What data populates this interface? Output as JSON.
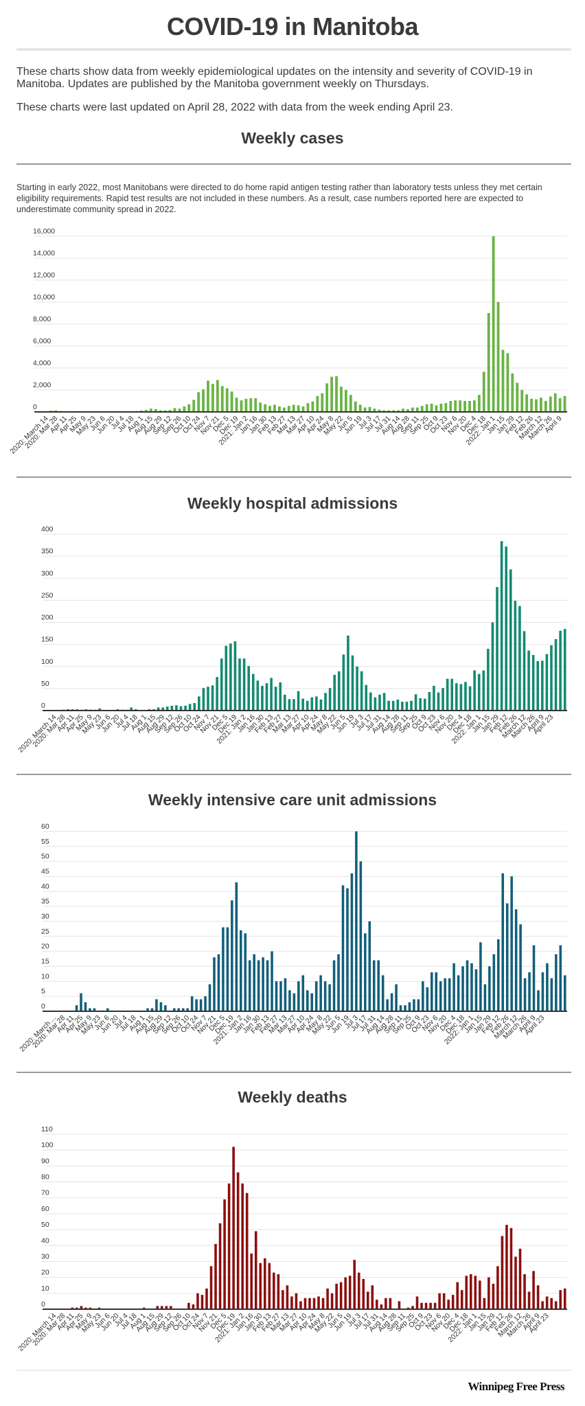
{
  "page": {
    "title": "COVID-19 in Manitoba",
    "intro_1": "These charts show data from weekly epidemiological updates on the intensity and severity of COVID-19 in Manitoba. Updates are published by the Manitoba government weekly on Thursdays.",
    "intro_2": "These charts were last updated on April 28, 2022 with data from the week ending April 23.",
    "cases_note": "Starting in early 2022, most Manitobans were directed to do home rapid antigen testing rather than laboratory tests unless they met certain eligibility requirements. Rapid test results are not included in these numbers. As a result, case numbers reported here are expected to underestimate community spread in 2022.",
    "brand": "Winnipeg Free Press"
  },
  "chart_data": [
    {
      "id": "cases",
      "type": "bar",
      "title": "Weekly cases",
      "color": "#6ab445",
      "xlabel": "",
      "ylabel": "",
      "ylim": [
        0,
        16000
      ],
      "yticks": [
        0,
        2000,
        4000,
        6000,
        8000,
        10000,
        12000,
        14000,
        16000
      ],
      "ytick_labels": [
        "0",
        "2,000",
        "4,000",
        "6,000",
        "8,000",
        "10,000",
        "12,000",
        "14,000",
        "16,000"
      ],
      "grid": true,
      "legend": "none",
      "x_labels": [
        "2020: March 14",
        "2020: Mar 28",
        "Apr 11",
        "Apr 25",
        "May 9",
        "May 23",
        "Jun 6",
        "Jun 20",
        "Jul 4",
        "Jul 18",
        "Aug 1",
        "Aug 15",
        "Aug 29",
        "Sep 12",
        "Sep 26",
        "Oct 10",
        "Oct 24",
        "Nov 7",
        "Nov 21",
        "Dec 5",
        "Dec 19",
        "2021: Jan 2",
        "Jan 16",
        "Jan 30",
        "Feb 13",
        "Feb 27",
        "Mar 13",
        "Mar 27",
        "Apr 10",
        "Apr 24",
        "May 8",
        "May 22",
        "Jun 5",
        "Jun 19",
        "Jul 3",
        "Jul 17",
        "Jul 31",
        "Aug 14",
        "Aug 28",
        "Sep 11",
        "Sep 25",
        "Oct 9",
        "Oct 23",
        "Nov 6",
        "Nov 20",
        "Dec 4",
        "Dec 18",
        "2022: Jan 1",
        "Jan 15",
        "Jan 29",
        "Feb 12",
        "Feb 26",
        "March 12",
        "March 26",
        "April 9"
      ],
      "values": [
        20,
        120,
        140,
        80,
        40,
        15,
        10,
        5,
        5,
        5,
        5,
        5,
        5,
        5,
        10,
        10,
        20,
        30,
        60,
        80,
        120,
        180,
        300,
        250,
        150,
        140,
        180,
        350,
        300,
        500,
        700,
        1100,
        1800,
        2050,
        2850,
        2550,
        2900,
        2350,
        2150,
        1850,
        1300,
        1050,
        1200,
        1250,
        1250,
        850,
        700,
        550,
        650,
        500,
        400,
        550,
        650,
        600,
        500,
        800,
        950,
        1450,
        1700,
        2600,
        3200,
        3250,
        2300,
        2000,
        1550,
        950,
        650,
        400,
        450,
        300,
        200,
        150,
        150,
        150,
        150,
        300,
        250,
        400,
        400,
        550,
        700,
        750,
        600,
        750,
        800,
        1000,
        1050,
        1050,
        1000,
        1000,
        1050,
        1550,
        3650,
        9000,
        16000,
        10000,
        5650,
        5350,
        3500,
        2650,
        2000,
        1600,
        1200,
        1150,
        1300,
        1000,
        1400,
        1700,
        1250,
        1450
      ]
    },
    {
      "id": "hospital",
      "type": "bar",
      "title": "Weekly hospital admissions",
      "color": "#148a72",
      "xlabel": "",
      "ylabel": "",
      "ylim": [
        0,
        400
      ],
      "yticks": [
        0,
        50,
        100,
        150,
        200,
        250,
        300,
        350,
        400
      ],
      "ytick_labels": [
        "0",
        "50",
        "100",
        "150",
        "200",
        "250",
        "300",
        "350",
        "400"
      ],
      "grid": true,
      "legend": "none",
      "x_labels": [
        "2020: March 14",
        "2020: Mar 28",
        "Apr 11",
        "Apr 25",
        "May 9",
        "May 23",
        "Jun 6",
        "Jun 20",
        "Jul 4",
        "Jul 18",
        "Aug 1",
        "Aug 15",
        "Aug 29",
        "Sep 12",
        "Sep 26",
        "Oct 10",
        "Oct 24",
        "Nov 7",
        "Nov 21",
        "Dec 5",
        "Dec 19",
        "2021: Jan 2",
        "Jan 16",
        "Jan 30",
        "Feb 13",
        "Feb 27",
        "Mar 13",
        "Mar 27",
        "Apr 10",
        "Apr 24",
        "May 8",
        "May 22",
        "Jun 5",
        "Jun 19",
        "Jul 3",
        "Jul 17",
        "Jul 31",
        "Aug 14",
        "Aug 28",
        "Sep 11",
        "Sep 25",
        "Oct 9",
        "Oct 23",
        "Nov 6",
        "Nov 20",
        "Dec 4",
        "Dec 18",
        "2022: Jan 1",
        "Jan 15",
        "Jan 29",
        "Feb 12",
        "Feb 26",
        "March 12",
        "March 26",
        "April 9",
        "April 23"
      ],
      "values": [
        0,
        0,
        2,
        3,
        3,
        3,
        2,
        3,
        2,
        2,
        5,
        0,
        1,
        0,
        3,
        2,
        2,
        7,
        3,
        0,
        0,
        3,
        3,
        7,
        7,
        9,
        11,
        12,
        10,
        11,
        15,
        17,
        32,
        51,
        54,
        57,
        76,
        118,
        147,
        152,
        157,
        118,
        118,
        101,
        83,
        68,
        56,
        62,
        74,
        54,
        64,
        36,
        26,
        26,
        44,
        27,
        22,
        30,
        32,
        25,
        40,
        51,
        81,
        89,
        127,
        170,
        125,
        100,
        89,
        58,
        41,
        30,
        36,
        40,
        22,
        22,
        25,
        20,
        20,
        22,
        37,
        28,
        27,
        42,
        56,
        41,
        51,
        72,
        72,
        62,
        60,
        65,
        55,
        91,
        83,
        91,
        140,
        200,
        280,
        384,
        372,
        320,
        249,
        237,
        180,
        136,
        126,
        112,
        113,
        128,
        148,
        162,
        181,
        185
      ]
    },
    {
      "id": "icu",
      "type": "bar",
      "title": "Weekly intensive care unit admissions",
      "color": "#115f7a",
      "xlabel": "",
      "ylabel": "",
      "ylim": [
        0,
        60
      ],
      "yticks": [
        0,
        5,
        10,
        15,
        20,
        25,
        30,
        35,
        40,
        45,
        50,
        55,
        60
      ],
      "ytick_labels": [
        "0",
        "5",
        "10",
        "15",
        "20",
        "25",
        "30",
        "35",
        "40",
        "45",
        "50",
        "55",
        "60"
      ],
      "grid": true,
      "legend": "none",
      "x_labels": [
        "2020: March ...",
        "2020: Mar 28",
        "Apr 11",
        "Apr 25",
        "May 9",
        "May 23",
        "Jun 6",
        "Jun 20",
        "Jul 4",
        "Jul 18",
        "Aug 1",
        "Aug 15",
        "Aug 29",
        "Sep 12",
        "Sep 26",
        "Oct 10",
        "Oct 24",
        "Nov 7",
        "Nov 21",
        "Dec 5",
        "Dec 19",
        "2021: Jan 2",
        "Jan 16",
        "Jan 30",
        "Feb 13",
        "Feb 27",
        "Mar 13",
        "Mar 27",
        "Apr 10",
        "Apr 24",
        "May 8",
        "May 22",
        "Jun 5",
        "Jun 19",
        "Jul 3",
        "Jul 17",
        "Jul 31",
        "Aug 14",
        "Aug 28",
        "Sep 11",
        "Sep 25",
        "Oct 9",
        "Oct 23",
        "Nov 6",
        "Nov 20",
        "Dec 4",
        "Dec 18",
        "2022: Jan 1",
        "Jan 15",
        "Jan 29",
        "Feb 12",
        "Feb 26",
        "March 12",
        "March 26",
        "April 9",
        "April 23"
      ],
      "values": [
        0,
        0,
        0,
        0,
        0,
        2,
        6,
        3,
        1,
        1,
        0,
        0,
        1,
        0,
        0,
        0,
        0,
        0,
        0,
        0,
        0,
        1,
        1,
        4,
        3,
        2,
        0,
        1,
        1,
        1,
        1,
        5,
        4,
        4,
        5,
        9,
        18,
        19,
        28,
        28,
        37,
        43,
        27,
        26,
        17,
        19,
        17,
        18,
        17,
        20,
        10,
        10,
        11,
        7,
        6,
        10,
        12,
        7,
        6,
        10,
        12,
        10,
        9,
        17,
        19,
        42,
        41,
        46,
        60,
        50,
        26,
        30,
        17,
        17,
        12,
        4,
        6,
        9,
        2,
        2,
        3,
        4,
        4,
        10,
        8,
        13,
        13,
        10,
        11,
        11,
        16,
        12,
        15,
        17,
        16,
        14,
        23,
        9,
        15,
        19,
        24,
        46,
        36,
        45,
        34,
        29,
        11,
        13,
        22,
        7,
        13,
        16,
        11,
        19,
        22,
        12
      ]
    },
    {
      "id": "deaths",
      "type": "bar",
      "title": "Weekly deaths",
      "color": "#8c0f0f",
      "xlabel": "",
      "ylabel": "",
      "ylim": [
        0,
        110
      ],
      "yticks": [
        0,
        10,
        20,
        30,
        40,
        50,
        60,
        70,
        80,
        90,
        100,
        110
      ],
      "ytick_labels": [
        "0",
        "10",
        "20",
        "30",
        "40",
        "50",
        "60",
        "70",
        "80",
        "90",
        "100",
        "110"
      ],
      "grid": true,
      "legend": "none",
      "x_labels": [
        "2020: March 14",
        "2020: Mar 28",
        "Apr 11",
        "Apr 25",
        "May 9",
        "May 23",
        "Jun 6",
        "Jun 20",
        "Jul 4",
        "Jul 18",
        "Aug 1",
        "Aug 15",
        "Aug 29",
        "Sep 12",
        "Sep 26",
        "Oct 10",
        "Oct 24",
        "Nov 7",
        "Nov 21",
        "Dec 5",
        "Dec 19",
        "2021: Jan 2",
        "Jan 16",
        "Jan 30",
        "Feb 13",
        "Feb 27",
        "Mar 13",
        "Mar 27",
        "Apr 10",
        "Apr 24",
        "May 8",
        "May 22",
        "Jun 5",
        "Jun 19",
        "Jul 3",
        "Jul 17",
        "Jul 31",
        "Aug 14",
        "Aug 28",
        "Sep 11",
        "Sep 25",
        "Oct 9",
        "Oct 23",
        "Nov 6",
        "Nov 20",
        "Dec 4",
        "Dec 18",
        "2022: Jan 1",
        "Jan 15",
        "Jan 29",
        "Feb 12",
        "Feb 26",
        "March 12",
        "March 26",
        "April 9",
        "April 23"
      ],
      "values": [
        0,
        0,
        0,
        0,
        1,
        1,
        2,
        1,
        1,
        0,
        1,
        0,
        0,
        0,
        0,
        0,
        0,
        0,
        0,
        0,
        1,
        0,
        0,
        2,
        2,
        2,
        2,
        0,
        0,
        0,
        4,
        3,
        10,
        9,
        13,
        27,
        41,
        54,
        69,
        79,
        102,
        86,
        79,
        73,
        35,
        49,
        29,
        32,
        29,
        23,
        22,
        12,
        15,
        8,
        10,
        5,
        7,
        7,
        7,
        8,
        7,
        13,
        10,
        16,
        17,
        20,
        21,
        31,
        23,
        19,
        11,
        15,
        6,
        3,
        7,
        7,
        0,
        5,
        0,
        1,
        2,
        8,
        4,
        4,
        4,
        4,
        10,
        10,
        6,
        9,
        17,
        12,
        21,
        22,
        21,
        18,
        7,
        20,
        16,
        27,
        46,
        53,
        51,
        33,
        38,
        22,
        11,
        24,
        15,
        5,
        8,
        7,
        5,
        12,
        13
      ]
    }
  ]
}
